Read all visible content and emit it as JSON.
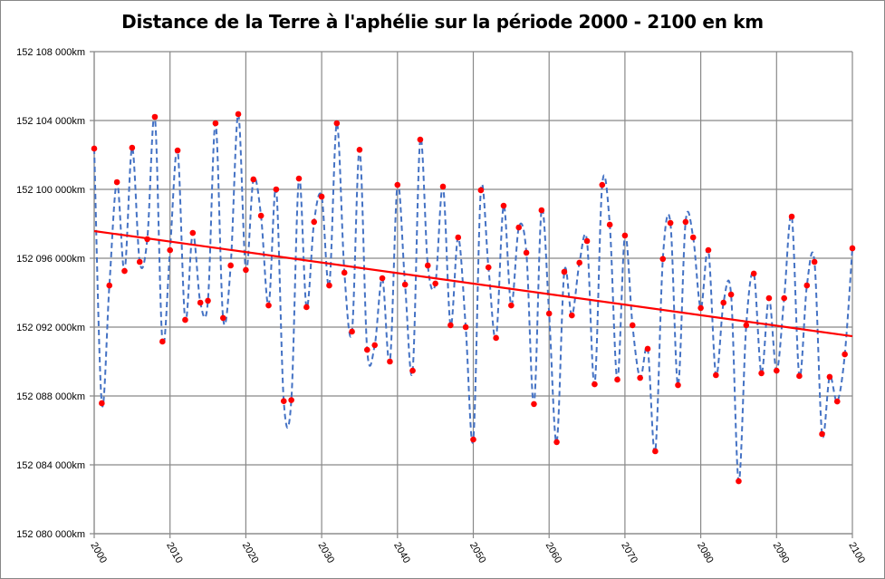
{
  "chart_data": {
    "type": "line",
    "title": "Distance de la Terre à l'aphélie sur la période 2000 - 2100 en km",
    "xlabel": "",
    "ylabel": "",
    "xlim": [
      2000,
      2100
    ],
    "ylim": [
      152080000,
      152108000
    ],
    "grid": true,
    "x_ticks": [
      "2000",
      "2010",
      "2020",
      "2030",
      "2040",
      "2050",
      "2060",
      "2070",
      "2080",
      "2090",
      "2100"
    ],
    "y_ticks": [
      {
        "value": 152108000,
        "label": "152 108 000km"
      },
      {
        "value": 152104000,
        "label": "152 104 000km"
      },
      {
        "value": 152100000,
        "label": "152 100 000km"
      },
      {
        "value": 152096000,
        "label": "152 096 000km"
      },
      {
        "value": 152092000,
        "label": "152 092 000km"
      },
      {
        "value": 152088000,
        "label": "152 088 000km"
      },
      {
        "value": 152084000,
        "label": "152 084 000km"
      },
      {
        "value": 152080000,
        "label": "152 080 000km"
      }
    ],
    "series": [
      {
        "style": "smoothed dashed line with markers",
        "line_color": "#4472C4",
        "marker_color": "#FF0000",
        "x_start": 2000,
        "x_step": 1,
        "values": [
          152102370,
          152087580,
          152094420,
          152100420,
          152095260,
          152102420,
          152095790,
          152097110,
          152104210,
          152091160,
          152096470,
          152102260,
          152092420,
          152097470,
          152093420,
          152093530,
          152103840,
          152092530,
          152095580,
          152104370,
          152095320,
          152100580,
          152098470,
          152093260,
          152100000,
          152087700,
          152087760,
          152100630,
          152093160,
          152098110,
          152099580,
          152094420,
          152103840,
          152095160,
          152091740,
          152102300,
          152090680,
          152090950,
          152094840,
          152090000,
          152100260,
          152094470,
          152089470,
          152102890,
          152095580,
          152094530,
          152100160,
          152092110,
          152097210,
          152092000,
          152085470,
          152099950,
          152095470,
          152091370,
          152099050,
          152093260,
          152097790,
          152096320,
          152087530,
          152098790,
          152092790,
          152085320,
          152095210,
          152092680,
          152095740,
          152097000,
          152088680,
          152100260,
          152097950,
          152088950,
          152097320,
          152092110,
          152089050,
          152090740,
          152084790,
          152095960,
          152098050,
          152088630,
          152098110,
          152097210,
          152093110,
          152096470,
          152089210,
          152093420,
          152093890,
          152083050,
          152092110,
          152095110,
          152089320,
          152093680,
          152089470,
          152093680,
          152098420,
          152089160,
          152094420,
          152095790,
          152085790,
          152089110,
          152087680,
          152090420,
          152096580
        ]
      },
      {
        "style": "linear trend line",
        "line_color": "#FF0000",
        "x": [
          2000,
          2100
        ],
        "values": [
          152097580,
          152091470
        ]
      }
    ]
  }
}
